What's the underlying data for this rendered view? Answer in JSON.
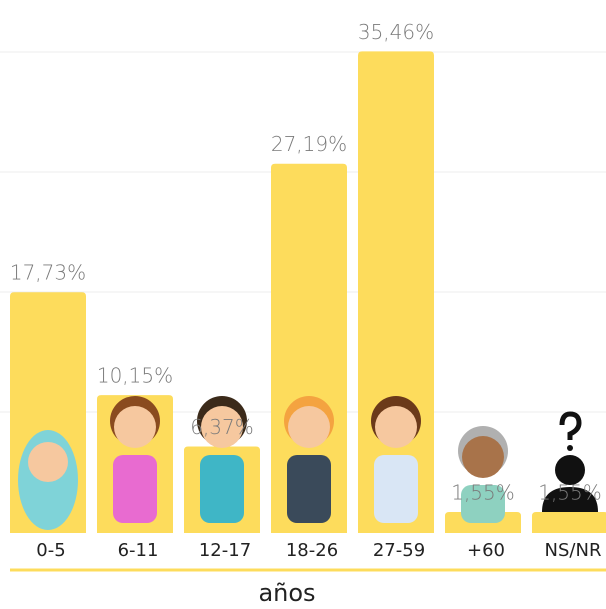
{
  "chart_data": {
    "type": "bar",
    "categories": [
      "0-5",
      "6-11",
      "12-17",
      "18-26",
      "27-59",
      "+60",
      "NS/NR"
    ],
    "values": [
      17.73,
      10.15,
      6.37,
      27.19,
      35.46,
      1.55,
      1.55
    ],
    "value_labels": [
      "17,73%",
      "10,15%",
      "6,37%",
      "27,19%",
      "35,46%",
      "1,55%",
      "1,55%"
    ],
    "color": "#fddc5c",
    "ylim": [
      0,
      36.3
    ],
    "x_label": "años"
  }
}
